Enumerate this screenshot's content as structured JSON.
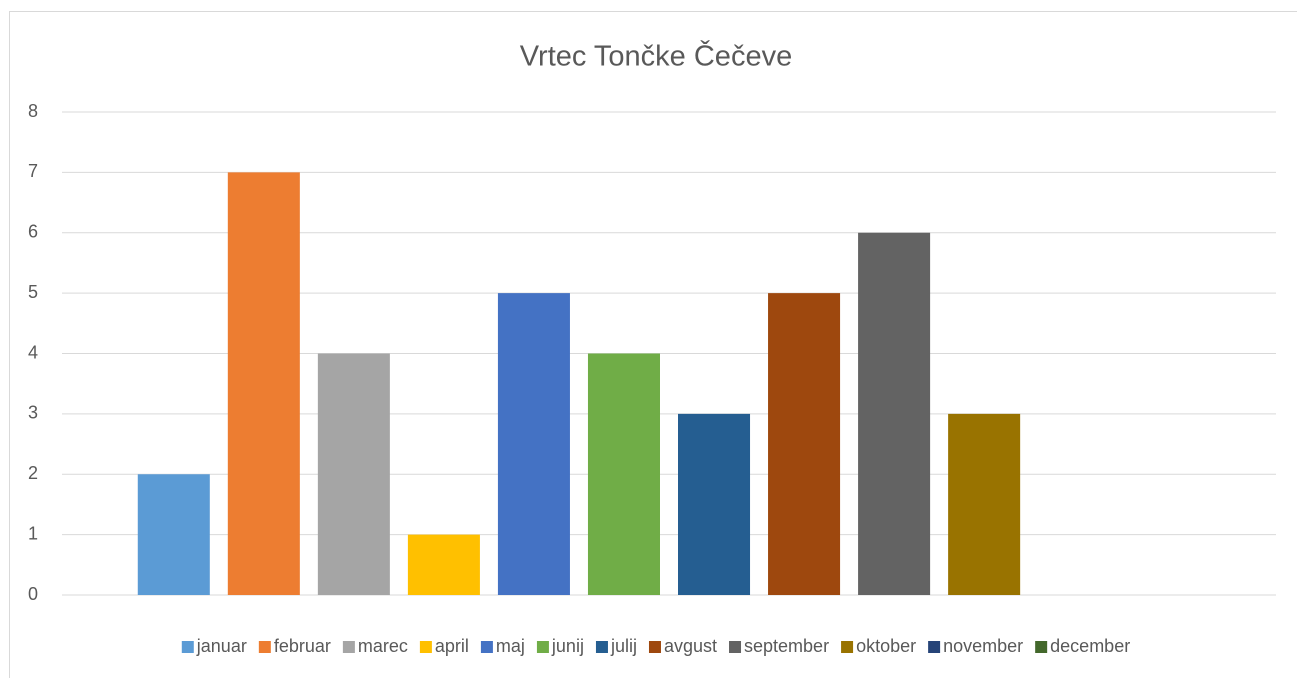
{
  "chart_data": {
    "type": "bar",
    "title": "Vrtec Tončke Čečeve",
    "categories": [
      null
    ],
    "series": [
      {
        "name": "januar",
        "color": "#5b9bd5",
        "values": [
          2
        ]
      },
      {
        "name": "februar",
        "color": "#ed7d31",
        "values": [
          7
        ]
      },
      {
        "name": "marec",
        "color": "#a5a5a5",
        "values": [
          4
        ]
      },
      {
        "name": "april",
        "color": "#ffc000",
        "values": [
          1
        ]
      },
      {
        "name": "maj",
        "color": "#4472c4",
        "values": [
          5
        ]
      },
      {
        "name": "junij",
        "color": "#70ad47",
        "values": [
          4
        ]
      },
      {
        "name": "julij",
        "color": "#255e91",
        "values": [
          3
        ]
      },
      {
        "name": "avgust",
        "color": "#9e480e",
        "values": [
          5
        ]
      },
      {
        "name": "september",
        "color": "#636363",
        "values": [
          6
        ]
      },
      {
        "name": "oktober",
        "color": "#997300",
        "values": [
          3
        ]
      },
      {
        "name": "november",
        "color": "#264478",
        "values": [
          null
        ]
      },
      {
        "name": "december",
        "color": "#43682b",
        "values": [
          null
        ]
      }
    ],
    "ylim": [
      0,
      8
    ],
    "yticks": [
      0,
      1,
      2,
      3,
      4,
      5,
      6,
      7,
      8
    ],
    "grid": true,
    "legend": "bottom"
  }
}
